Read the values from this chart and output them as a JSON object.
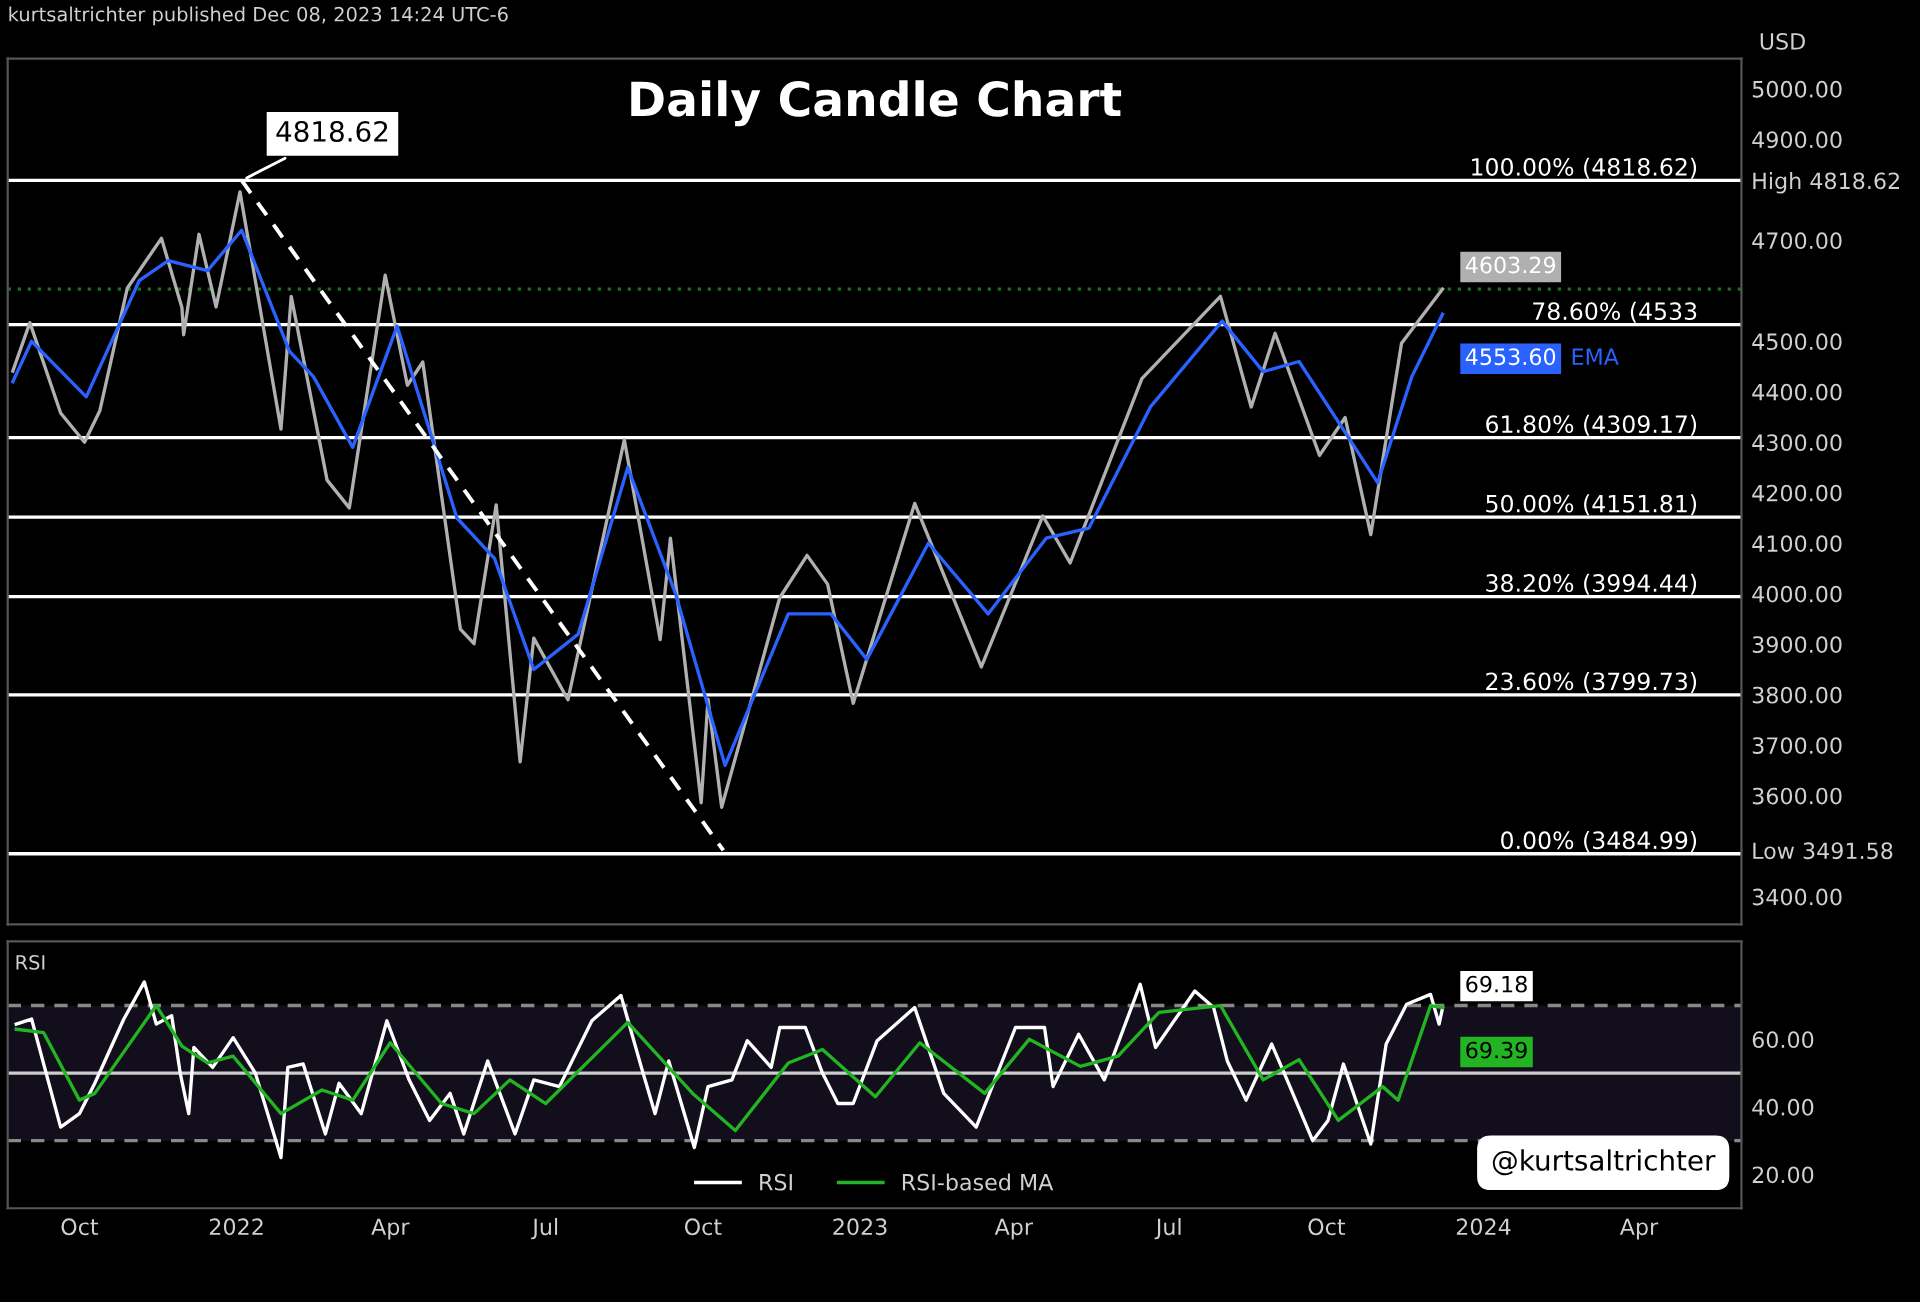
{
  "chart_data": [
    {
      "type": "line",
      "title": "Daily Candle Chart",
      "subtitle": "kurtsaltrichter published Dec 08, 2023 14:24 UTC-6",
      "xlim": [
        "2021-08-20",
        "2024-05-31"
      ],
      "ylim": [
        3345,
        5060
      ],
      "yticks": [
        {
          "value": 3400,
          "label": "3400.00"
        },
        {
          "value": 3491.58,
          "label": "Low 3491.58"
        },
        {
          "value": 3600,
          "label": "3600.00"
        },
        {
          "value": 3700,
          "label": "3700.00"
        },
        {
          "value": 3800,
          "label": "3800.00"
        },
        {
          "value": 3900,
          "label": "3900.00"
        },
        {
          "value": 4000,
          "label": "4000.00"
        },
        {
          "value": 4100,
          "label": "4100.00"
        },
        {
          "value": 4200,
          "label": "4200.00"
        },
        {
          "value": 4300,
          "label": "4300.00"
        },
        {
          "value": 4400,
          "label": "4400.00"
        },
        {
          "value": 4500,
          "label": "4500.00"
        },
        {
          "value": 4700,
          "label": "4700.00"
        },
        {
          "value": 4818.62,
          "label": "High 4818.62"
        },
        {
          "value": 4900,
          "label": "4900.00"
        },
        {
          "value": 5000,
          "label": "5000.00"
        }
      ],
      "tick_labels": "y",
      "grid": false,
      "series": [
        {
          "color": "#b0b0b0",
          "x": [
            "2021-08-23",
            "2021-09-02",
            "2021-09-20",
            "2021-10-04",
            "2021-10-13",
            "2021-10-29",
            "2021-11-18",
            "2021-11-30",
            "2021-12-01",
            "2021-12-10",
            "2021-12-20",
            "2022-01-03",
            "2022-01-27",
            "2022-02-02",
            "2022-02-23",
            "2022-03-08",
            "2022-03-29",
            "2022-04-11",
            "2022-04-20",
            "2022-05-12",
            "2022-05-20",
            "2022-06-02",
            "2022-06-16",
            "2022-06-24",
            "2022-07-14",
            "2022-08-16",
            "2022-09-06",
            "2022-09-12",
            "2022-09-30",
            "2022-10-04",
            "2022-10-12",
            "2022-11-15",
            "2022-12-01",
            "2022-12-13",
            "2022-12-28",
            "2023-02-02",
            "2023-03-13",
            "2023-04-18",
            "2023-05-04",
            "2023-06-15",
            "2023-07-31",
            "2023-08-18",
            "2023-09-01",
            "2023-09-27",
            "2023-10-12",
            "2023-10-27",
            "2023-11-14",
            "2023-12-08"
          ],
          "values": [
            4441,
            4537,
            4358,
            4300,
            4363,
            4605,
            4704,
            4567,
            4513,
            4712,
            4568,
            4796,
            4326,
            4589,
            4225,
            4170,
            4631,
            4413,
            4459,
            3930,
            3901,
            4176,
            3667,
            3912,
            3790,
            4305,
            3909,
            4110,
            3586,
            3791,
            3577,
            3992,
            4076,
            4019,
            3783,
            4179,
            3855,
            4154,
            4061,
            4426,
            4589,
            4370,
            4516,
            4274,
            4349,
            4117,
            4496,
            4603.29
          ],
          "value_labels": [
            null,
            null,
            null,
            null,
            null,
            null,
            null,
            null,
            null,
            null,
            null,
            null,
            null,
            null,
            null,
            null,
            null,
            null,
            null,
            null,
            null,
            null,
            null,
            null,
            null,
            null,
            null,
            null,
            null,
            null,
            null,
            null,
            null,
            null,
            null,
            null,
            null,
            null,
            null,
            null,
            null,
            null,
            null,
            null,
            null,
            null,
            null,
            "4603.29"
          ]
        },
        {
          "name": "EMA",
          "color": "#2962ff",
          "x": [
            "2021-08-23",
            "2021-09-03",
            "2021-10-05",
            "2021-11-05",
            "2021-11-22",
            "2021-12-15",
            "2022-01-04",
            "2022-02-01",
            "2022-02-15",
            "2022-03-10",
            "2022-04-05",
            "2022-05-10",
            "2022-06-01",
            "2022-06-24",
            "2022-07-20",
            "2022-08-18",
            "2022-09-15",
            "2022-10-14",
            "2022-11-20",
            "2022-12-15",
            "2023-01-05",
            "2023-02-10",
            "2023-03-17",
            "2023-04-20",
            "2023-05-15",
            "2023-06-20",
            "2023-08-01",
            "2023-08-25",
            "2023-09-15",
            "2023-10-10",
            "2023-10-31",
            "2023-11-20",
            "2023-12-08"
          ],
          "values": [
            4420,
            4500,
            4390,
            4620,
            4660,
            4640,
            4720,
            4480,
            4430,
            4290,
            4530,
            4150,
            4070,
            3850,
            3920,
            4250,
            4000,
            3660,
            3960,
            3960,
            3870,
            4100,
            3960,
            4110,
            4130,
            4370,
            4540,
            4440,
            4460,
            4330,
            4220,
            4430,
            4553.6
          ],
          "value_labels": [
            null,
            null,
            null,
            null,
            null,
            null,
            null,
            null,
            null,
            null,
            null,
            null,
            null,
            null,
            null,
            null,
            null,
            null,
            null,
            null,
            null,
            null,
            null,
            null,
            null,
            null,
            null,
            null,
            null,
            null,
            null,
            null,
            "4553.60"
          ]
        },
        {
          "color": "#ffffff",
          "line_style": "dashed",
          "x": [
            "2022-01-04",
            "2022-10-13"
          ],
          "values": [
            4818.62,
            3491.58
          ]
        }
      ],
      "ref_lines": [
        {
          "axis": "y",
          "value": 4818.62,
          "label": "100.00% (4818.62)",
          "color": "#ffffff"
        },
        {
          "axis": "y",
          "value": 4603.29,
          "color": "#1b6e1b",
          "line_style": "dotted"
        },
        {
          "axis": "y",
          "value": 4533,
          "label": "78.60% (4533",
          "color": "#ffffff"
        },
        {
          "axis": "y",
          "value": 4309.17,
          "label": "61.80% (4309.17)",
          "color": "#ffffff"
        },
        {
          "axis": "y",
          "value": 4151.81,
          "label": "50.00% (4151.81)",
          "color": "#ffffff"
        },
        {
          "axis": "y",
          "value": 3994.44,
          "label": "38.20% (3994.44)",
          "color": "#ffffff"
        },
        {
          "axis": "y",
          "value": 3799.73,
          "label": "23.60% (3799.73)",
          "color": "#ffffff"
        },
        {
          "axis": "y",
          "value": 3484.99,
          "label": "0.00% (3484.99)",
          "color": "#ffffff"
        }
      ],
      "annotations": [
        {
          "text": "4818.62",
          "x": "2022-01-04",
          "y": 4818.62
        },
        "USD"
      ]
    },
    {
      "type": "line",
      "title": "RSI",
      "xlim": [
        "2021-08-20",
        "2024-05-31"
      ],
      "xticks": [
        {
          "value": "2021-10-01",
          "label": "Oct"
        },
        {
          "value": "2022-01-01",
          "label": "2022"
        },
        {
          "value": "2022-04-01",
          "label": "Apr"
        },
        {
          "value": "2022-07-01",
          "label": "Jul"
        },
        {
          "value": "2022-10-01",
          "label": "Oct"
        },
        {
          "value": "2023-01-01",
          "label": "2023"
        },
        {
          "value": "2023-04-01",
          "label": "Apr"
        },
        {
          "value": "2023-07-01",
          "label": "Jul"
        },
        {
          "value": "2023-10-01",
          "label": "Oct"
        },
        {
          "value": "2024-01-01",
          "label": "2024"
        },
        {
          "value": "2024-04-01",
          "label": "Apr"
        }
      ],
      "ylim": [
        10,
        89
      ],
      "yticks": [
        {
          "value": 20,
          "label": "20.00"
        },
        {
          "value": 40,
          "label": "40.00"
        },
        {
          "value": 60,
          "label": "60.00"
        }
      ],
      "grid": false,
      "legend": "bottom",
      "series": [
        {
          "name": "RSI",
          "color": "#ffffff",
          "x": [
            "2021-08-25",
            "2021-09-03",
            "2021-09-20",
            "2021-10-01",
            "2021-10-10",
            "2021-10-27",
            "2021-11-08",
            "2021-11-15",
            "2021-11-24",
            "2021-11-29",
            "2021-12-04",
            "2021-12-07",
            "2021-12-18",
            "2021-12-30",
            "2022-01-12",
            "2022-01-27",
            "2022-01-31",
            "2022-02-09",
            "2022-02-22",
            "2022-03-02",
            "2022-03-15",
            "2022-03-30",
            "2022-04-12",
            "2022-04-24",
            "2022-05-06",
            "2022-05-14",
            "2022-05-28",
            "2022-06-13",
            "2022-06-24",
            "2022-07-09",
            "2022-07-28",
            "2022-08-14",
            "2022-08-26",
            "2022-09-03",
            "2022-09-11",
            "2022-09-26",
            "2022-10-04",
            "2022-10-18",
            "2022-10-27",
            "2022-11-10",
            "2022-11-15",
            "2022-11-30",
            "2022-12-10",
            "2022-12-19",
            "2022-12-28",
            "2023-01-11",
            "2023-02-02",
            "2023-02-19",
            "2023-03-10",
            "2023-04-02",
            "2023-04-19",
            "2023-04-24",
            "2023-05-09",
            "2023-05-24",
            "2023-06-14",
            "2023-06-23",
            "2023-07-16",
            "2023-07-27",
            "2023-08-04",
            "2023-08-15",
            "2023-08-30",
            "2023-09-08",
            "2023-09-23",
            "2023-10-02",
            "2023-10-11",
            "2023-10-27",
            "2023-11-05",
            "2023-11-17",
            "2023-12-01",
            "2023-12-06",
            "2023-12-08"
          ],
          "values": [
            64.5,
            66,
            34,
            38,
            47,
            66,
            77,
            64.5,
            67,
            50,
            38,
            57.6,
            51.7,
            60.5,
            50,
            25,
            51.7,
            52.7,
            32,
            47,
            38,
            65.5,
            48,
            36,
            44,
            32,
            53.6,
            32,
            48,
            46,
            65.5,
            73,
            51.7,
            38,
            53.6,
            28,
            46,
            48,
            59.6,
            51.7,
            63.5,
            63.5,
            50,
            41,
            41,
            59.6,
            69.4,
            44,
            34,
            63.5,
            63.5,
            46,
            61.5,
            48,
            76.3,
            57.6,
            74.3,
            69.4,
            53.6,
            42,
            58.6,
            48,
            30,
            36,
            52.7,
            29,
            58.6,
            70.4,
            73.3,
            64.5,
            69.18
          ],
          "value_labels": [
            null,
            null,
            null,
            null,
            null,
            null,
            null,
            null,
            null,
            null,
            null,
            null,
            null,
            null,
            null,
            null,
            null,
            null,
            null,
            null,
            null,
            null,
            null,
            null,
            null,
            null,
            null,
            null,
            null,
            null,
            null,
            null,
            null,
            null,
            null,
            null,
            null,
            null,
            null,
            null,
            null,
            null,
            null,
            null,
            null,
            null,
            null,
            null,
            null,
            null,
            null,
            null,
            null,
            null,
            null,
            null,
            null,
            null,
            null,
            null,
            null,
            null,
            null,
            null,
            null,
            null,
            null,
            null,
            null,
            null,
            "69.18"
          ]
        },
        {
          "name": "RSI-based MA",
          "color": "#22b422",
          "x": [
            "2021-08-25",
            "2021-09-10",
            "2021-10-01",
            "2021-10-10",
            "2021-11-15",
            "2021-11-30",
            "2021-12-15",
            "2021-12-30",
            "2022-01-27",
            "2022-02-20",
            "2022-03-10",
            "2022-04-01",
            "2022-05-01",
            "2022-05-20",
            "2022-06-10",
            "2022-07-01",
            "2022-08-18",
            "2022-09-25",
            "2022-10-20",
            "2022-11-20",
            "2022-12-10",
            "2023-01-10",
            "2023-02-05",
            "2023-03-15",
            "2023-04-10",
            "2023-05-10",
            "2023-06-01",
            "2023-06-25",
            "2023-07-31",
            "2023-08-25",
            "2023-09-15",
            "2023-10-08",
            "2023-11-03",
            "2023-11-12",
            "2023-12-01",
            "2023-12-08"
          ],
          "values": [
            63,
            62,
            42,
            44,
            70,
            58,
            53,
            55,
            38,
            45,
            42,
            59,
            41,
            38,
            48,
            41,
            65,
            44,
            33,
            53,
            57,
            43,
            59,
            44,
            60,
            52,
            55,
            68,
            70,
            48,
            54,
            36,
            46,
            42,
            70,
            69.39
          ],
          "value_labels": [
            null,
            null,
            null,
            null,
            null,
            null,
            null,
            null,
            null,
            null,
            null,
            null,
            null,
            null,
            null,
            null,
            null,
            null,
            null,
            null,
            null,
            null,
            null,
            null,
            null,
            null,
            null,
            null,
            null,
            null,
            null,
            null,
            null,
            null,
            null,
            "69.39"
          ]
        }
      ],
      "ref_lines": [
        {
          "axis": "y",
          "value": 70,
          "color": "#888888",
          "line_style": "dashed"
        },
        {
          "axis": "y",
          "value": 50,
          "color": "#cccccc"
        },
        {
          "axis": "y",
          "value": 30,
          "color": "#888888",
          "line_style": "dashed"
        }
      ],
      "bands": [
        {
          "axis": "y",
          "from": 30,
          "to": 70,
          "color": "#120e1c"
        }
      ],
      "annotations": [
        "@kurtsaltrichter"
      ]
    }
  ]
}
